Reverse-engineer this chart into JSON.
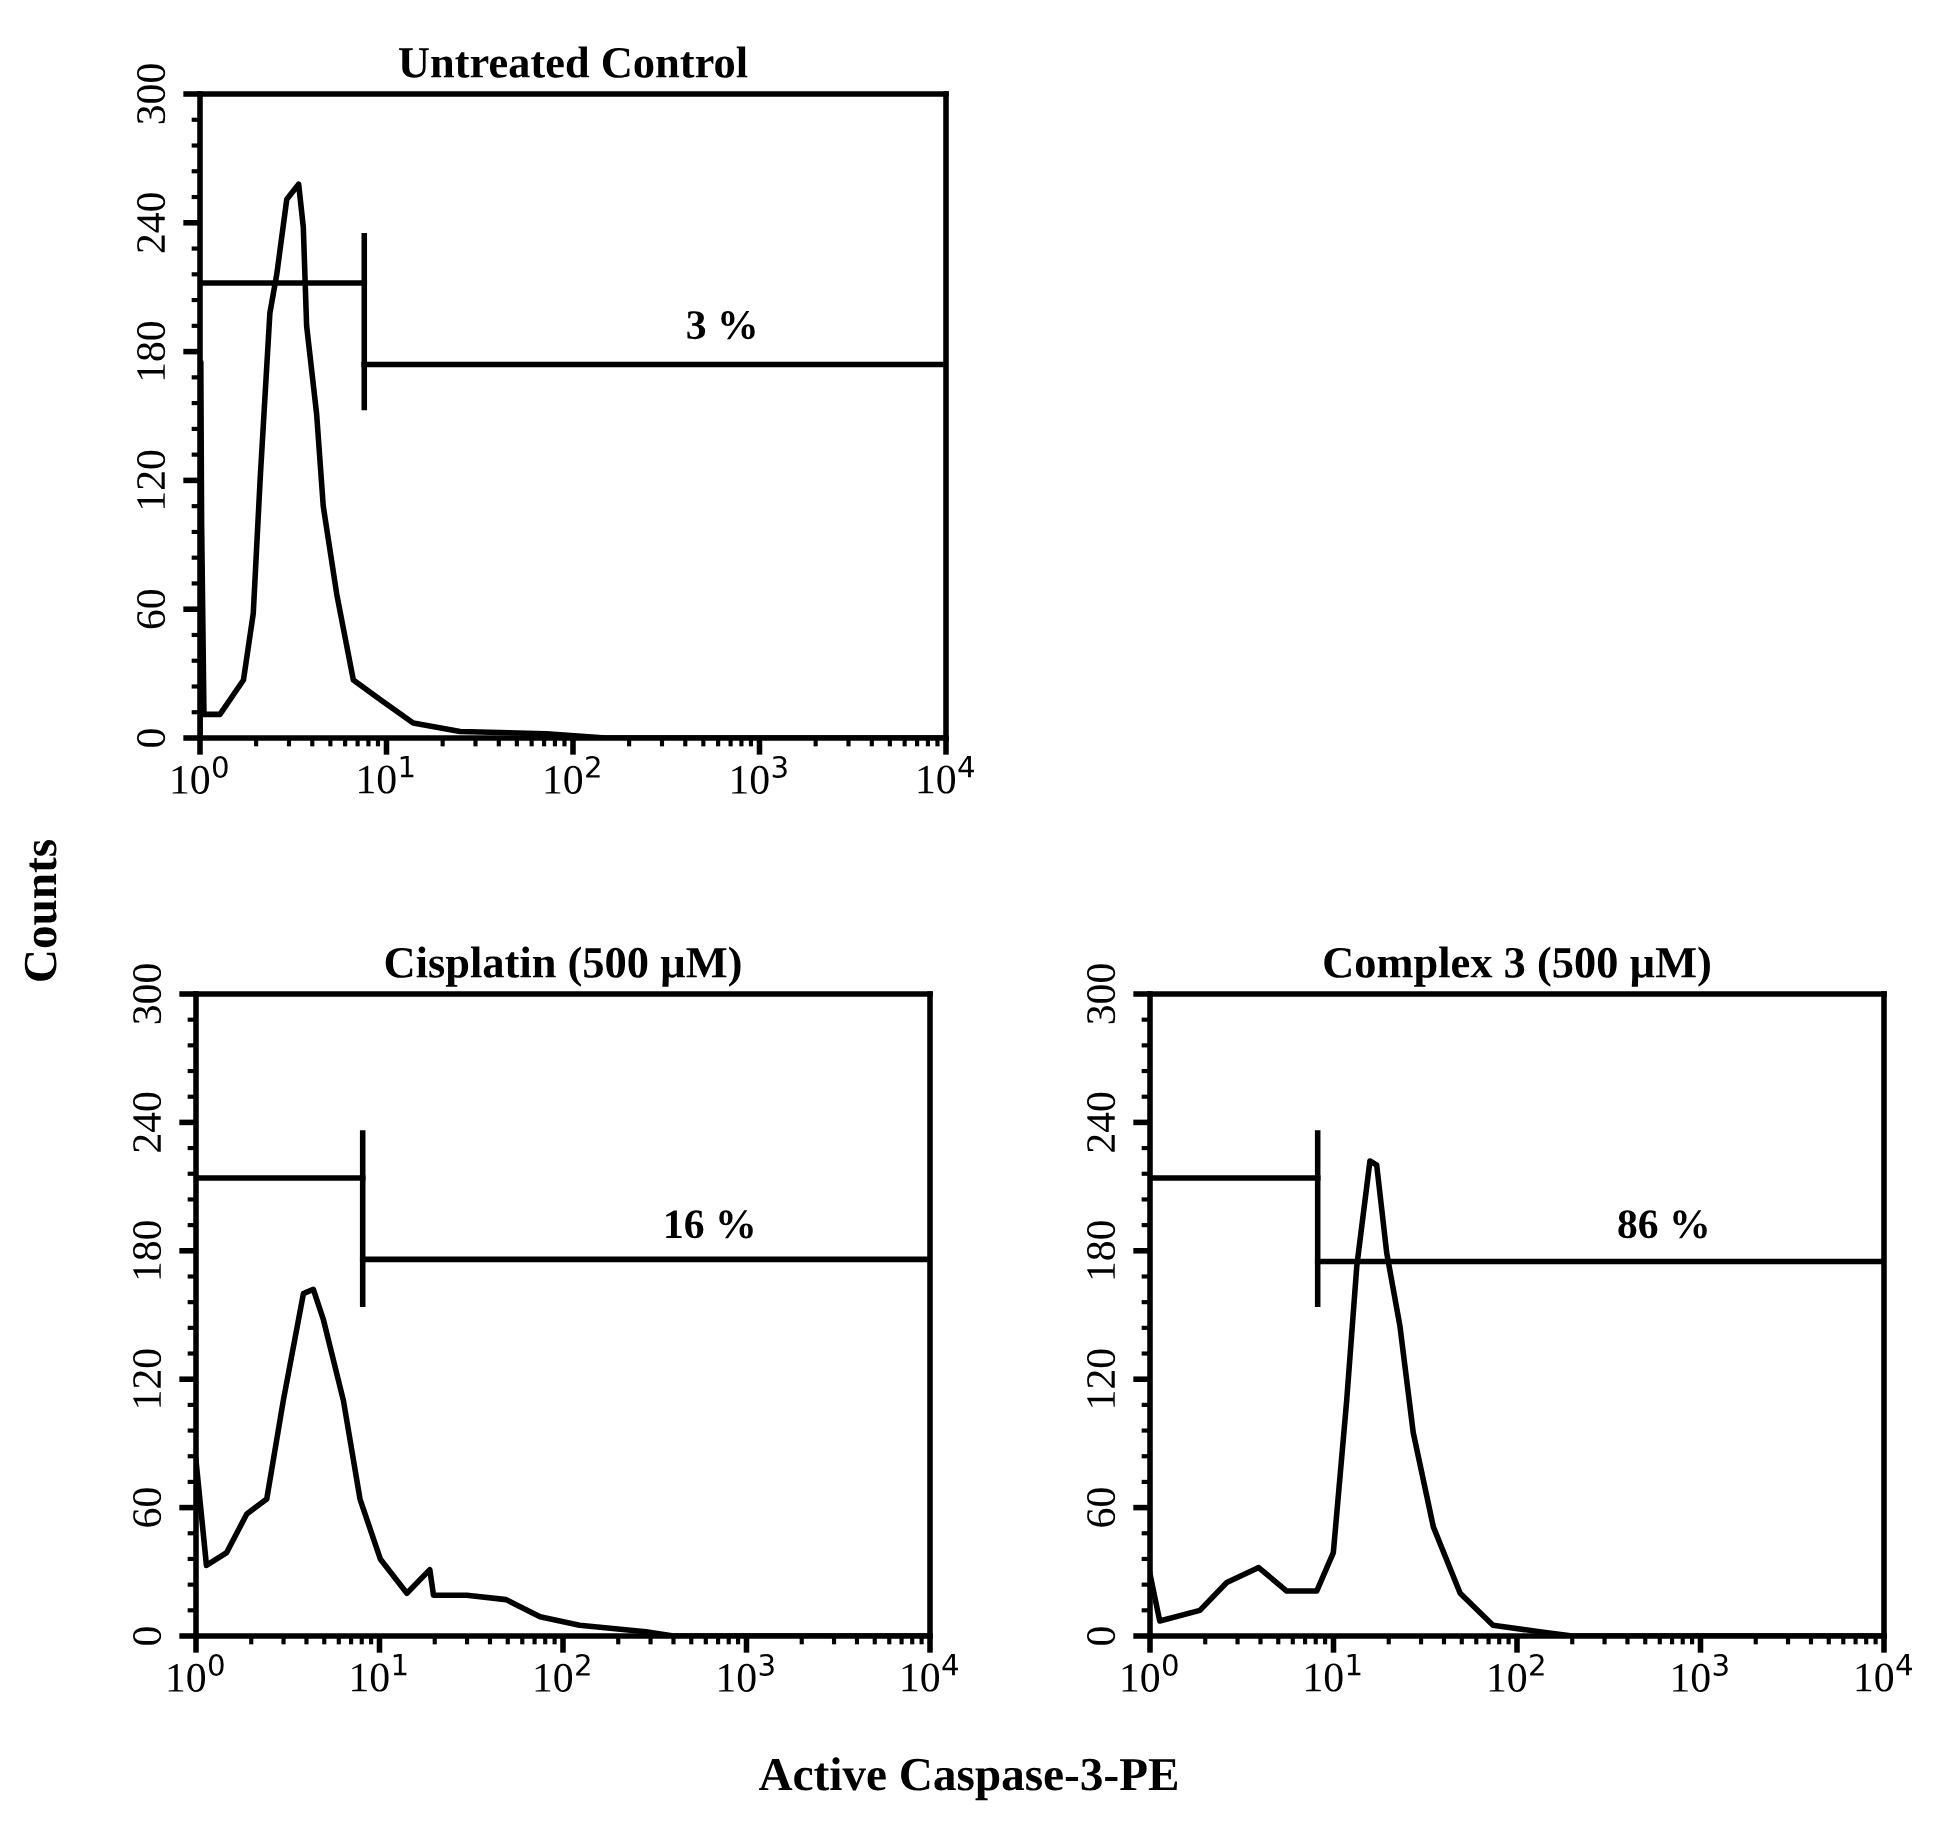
{
  "chart_data": [
    {
      "type": "line",
      "title": "Untreated Control",
      "xlim": [
        1,
        10000
      ],
      "ylim": [
        0,
        300
      ],
      "log": "x",
      "xticks": [
        {
          "value": 1,
          "label": "10$^{0}$"
        },
        {
          "value": 10,
          "label": "10$^{1}$"
        },
        {
          "value": 100,
          "label": "10$^{2}$"
        },
        {
          "value": 1000,
          "label": "10$^{3}$"
        },
        {
          "value": 10000,
          "label": "10$^{4}$"
        }
      ],
      "yticks": [
        0,
        60,
        120,
        180,
        240,
        300
      ],
      "series": [
        {
          "color": "#000000",
          "x": [
            1.0,
            1.01,
            1.02,
            1.05,
            1.28,
            1.71,
            1.93,
            2.1,
            2.37,
            2.58,
            2.92,
            3.38,
            3.58,
            3.73,
            4.22,
            4.58,
            5.41,
            6.64,
            9.2,
            13.9,
            24.8,
            72,
            150,
            10000
          ],
          "values": [
            0,
            175,
            100,
            11,
            11,
            27,
            58,
            120,
            198,
            216,
            251,
            258,
            238,
            192,
            151,
            108,
            67,
            27,
            18,
            7,
            3,
            2,
            0,
            0
          ]
        },
        {
          "color": "#000000",
          "x": [
            1,
            7.6
          ],
          "values": [
            212,
            212
          ]
        },
        {
          "color": "#000000",
          "x": [
            7.6,
            7.6
          ],
          "values": [
            154,
            234
          ]
        },
        {
          "color": "#000000",
          "x": [
            7.6,
            10000
          ],
          "values": [
            174,
            174
          ]
        }
      ],
      "annotations": [
        "3 %"
      ]
    },
    {
      "type": "line",
      "title": "Cisplatin (500 µM)",
      "xlabel": "Active Caspase-3-PE",
      "ylabel": "Counts",
      "xlim": [
        1,
        10000
      ],
      "ylim": [
        0,
        300
      ],
      "log": "x",
      "xticks": [
        {
          "value": 1,
          "label": "10$^{0}$"
        },
        {
          "value": 10,
          "label": "10$^{1}$"
        },
        {
          "value": 100,
          "label": "10$^{2}$"
        },
        {
          "value": 1000,
          "label": "10$^{3}$"
        },
        {
          "value": 10000,
          "label": "10$^{4}$"
        }
      ],
      "yticks": [
        0,
        60,
        120,
        180,
        240,
        300
      ],
      "series": [
        {
          "color": "#000000",
          "x": [
            1.0,
            1.14,
            1.47,
            1.89,
            2.43,
            2.99,
            3.85,
            4.36,
            4.94,
            6.36,
            7.83,
            10.1,
            14.1,
            18.8,
            19.7,
            29.9,
            49,
            75,
            123,
            283,
            400,
            10000
          ],
          "values": [
            82,
            33,
            39,
            57,
            64,
            110,
            160,
            162,
            148,
            110,
            64,
            36,
            20,
            31,
            19,
            19,
            17,
            9,
            5,
            2,
            0,
            0
          ]
        },
        {
          "color": "#000000",
          "x": [
            1,
            8.1
          ],
          "values": [
            214,
            214
          ]
        },
        {
          "color": "#000000",
          "x": [
            8.1,
            8.1
          ],
          "values": [
            155,
            235
          ]
        },
        {
          "color": "#000000",
          "x": [
            8.1,
            10000
          ],
          "values": [
            176,
            176
          ]
        }
      ],
      "annotations": [
        "16 %"
      ]
    },
    {
      "type": "line",
      "title": "Complex 3 (500 µM)",
      "xlim": [
        1,
        10000
      ],
      "ylim": [
        0,
        300
      ],
      "log": "x",
      "xticks": [
        {
          "value": 1,
          "label": "10$^{0}$"
        },
        {
          "value": 10,
          "label": "10$^{1}$"
        },
        {
          "value": 100,
          "label": "10$^{2}$"
        },
        {
          "value": 1000,
          "label": "10$^{3}$"
        },
        {
          "value": 10000,
          "label": "10$^{4}$"
        }
      ],
      "yticks": [
        0,
        60,
        120,
        180,
        240,
        300
      ],
      "series": [
        {
          "color": "#000000",
          "x": [
            1.0,
            1.13,
            1.87,
            2.62,
            3.91,
            5.56,
            8.1,
            9.98,
            11.8,
            13.4,
            15.8,
            17.2,
            19.5,
            23,
            27.2,
            35,
            49,
            74,
            133,
            200,
            10000
          ],
          "values": [
            29,
            7,
            12,
            25,
            32,
            21,
            21,
            39,
            110,
            173,
            222,
            220,
            179,
            145,
            95,
            51,
            20,
            5,
            2,
            0,
            0
          ]
        },
        {
          "color": "#000000",
          "x": [
            1,
            8.2
          ],
          "values": [
            214,
            214
          ]
        },
        {
          "color": "#000000",
          "x": [
            8.2,
            8.2
          ],
          "values": [
            155,
            235
          ]
        },
        {
          "color": "#000000",
          "x": [
            8.2,
            10000
          ],
          "values": [
            175,
            175
          ]
        }
      ],
      "annotations": [
        "86 %"
      ]
    }
  ]
}
